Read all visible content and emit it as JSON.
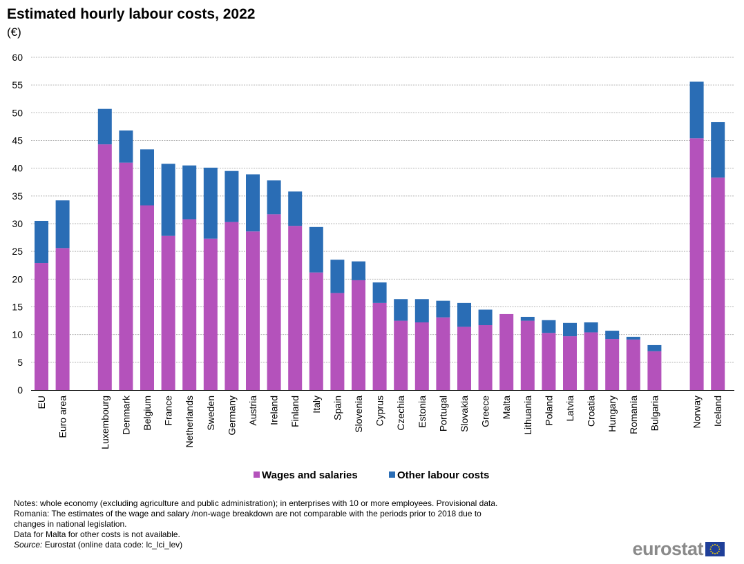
{
  "header": {
    "title": "Estimated hourly labour costs, 2022",
    "unit": "(€)"
  },
  "chart_data": {
    "type": "bar",
    "stacked": true,
    "title": "Estimated hourly labour costs, 2022",
    "subtitle": "(€)",
    "xlabel": "",
    "ylabel": "",
    "ylim": [
      0,
      60
    ],
    "yticks": [
      0,
      5,
      10,
      15,
      20,
      25,
      30,
      35,
      40,
      45,
      50,
      55,
      60
    ],
    "grid": true,
    "legend_position": "bottom",
    "categories": [
      "EU",
      "Euro area",
      "Luxembourg",
      "Denmark",
      "Belgium",
      "France",
      "Netherlands",
      "Sweden",
      "Germany",
      "Austria",
      "Ireland",
      "Finland",
      "Italy",
      "Spain",
      "Slovenia",
      "Cyprus",
      "Czechia",
      "Estonia",
      "Portugal",
      "Slovakia",
      "Greece",
      "Malta",
      "Lithuania",
      "Poland",
      "Latvia",
      "Croatia",
      "Hungary",
      "Romania",
      "Bulgaria",
      "Norway",
      "Iceland"
    ],
    "groups": [
      [
        0,
        1
      ],
      [
        2,
        28
      ],
      [
        29,
        30
      ]
    ],
    "series": [
      {
        "name": "Wages and salaries",
        "color": "#b452bb",
        "values": [
          22.9,
          25.6,
          44.3,
          41.0,
          33.3,
          27.8,
          30.8,
          27.3,
          30.3,
          28.6,
          31.7,
          29.6,
          21.2,
          17.5,
          19.8,
          15.7,
          12.5,
          12.2,
          13.1,
          11.4,
          11.7,
          13.7,
          12.5,
          10.3,
          9.7,
          10.4,
          9.2,
          9.1,
          7.0,
          45.4,
          38.3
        ]
      },
      {
        "name": "Other labour costs",
        "color": "#2a6db5",
        "values": [
          7.6,
          8.6,
          6.4,
          5.8,
          10.1,
          13.0,
          9.7,
          12.8,
          9.2,
          10.3,
          6.1,
          6.2,
          8.2,
          6.0,
          3.4,
          3.7,
          3.9,
          4.2,
          3.0,
          4.3,
          2.8,
          null,
          0.7,
          2.3,
          2.4,
          1.8,
          1.5,
          0.5,
          1.1,
          10.2,
          10.0
        ]
      }
    ]
  },
  "notes": {
    "line1": "Notes: whole economy (excluding agriculture and public administration); in enterprises with 10 or more employees. Provisional data.",
    "line2": "Romania: The estimates of the wage and salary /non-wage breakdown are not comparable with the periods prior to 2018 due to",
    "line3": "changes in national legislation.",
    "line4": "Data for Malta for other costs is not available.",
    "source_label": "Source:",
    "source_text": " Eurostat (online data code: lc_lci_lev)"
  },
  "logo": {
    "text": "eurostat"
  }
}
